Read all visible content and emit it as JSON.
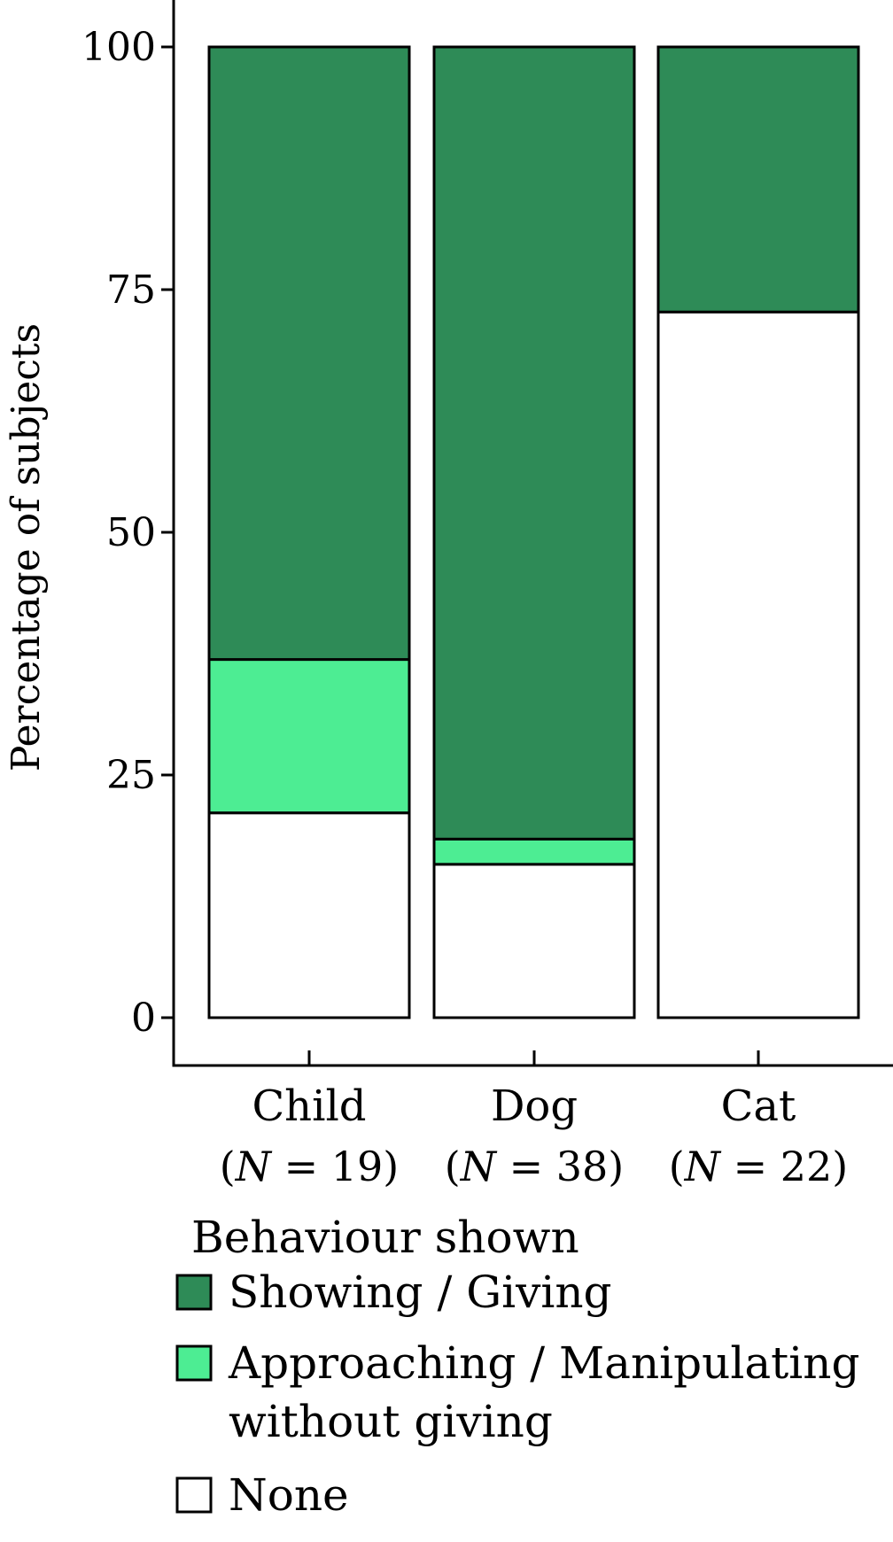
{
  "chart_data": {
    "type": "bar",
    "stacked": true,
    "ylabel": "Percentage of subjects",
    "ylim": [
      0,
      100
    ],
    "yticks": [
      0,
      25,
      50,
      75,
      100
    ],
    "categories": [
      {
        "name": "Child",
        "n_label": "(N = 19)",
        "n_prefix": "(",
        "n_var": "N",
        "n_rest": " = 19)"
      },
      {
        "name": "Dog",
        "n_label": "(N = 38)",
        "n_prefix": "(",
        "n_var": "N",
        "n_rest": " = 38)"
      },
      {
        "name": "Cat",
        "n_label": "(N = 22)",
        "n_prefix": "(",
        "n_var": "N",
        "n_rest": " = 22)"
      }
    ],
    "series": [
      {
        "name": "None",
        "color": "#ffffff",
        "values": [
          21.1,
          15.8,
          72.7
        ]
      },
      {
        "name": "Approaching / Manipulating without giving",
        "name_lines": [
          "Approaching / Manipulating",
          "without giving"
        ],
        "color": "#4ded93",
        "values": [
          15.8,
          2.6,
          0
        ]
      },
      {
        "name": "Showing / Giving",
        "color": "#2e8b57",
        "values": [
          63.1,
          81.6,
          27.3
        ]
      }
    ],
    "legend": {
      "title": "Behaviour shown",
      "position": "bottom",
      "order": [
        "Showing / Giving",
        "Approaching / Manipulating without giving",
        "None"
      ]
    },
    "grid": false
  }
}
